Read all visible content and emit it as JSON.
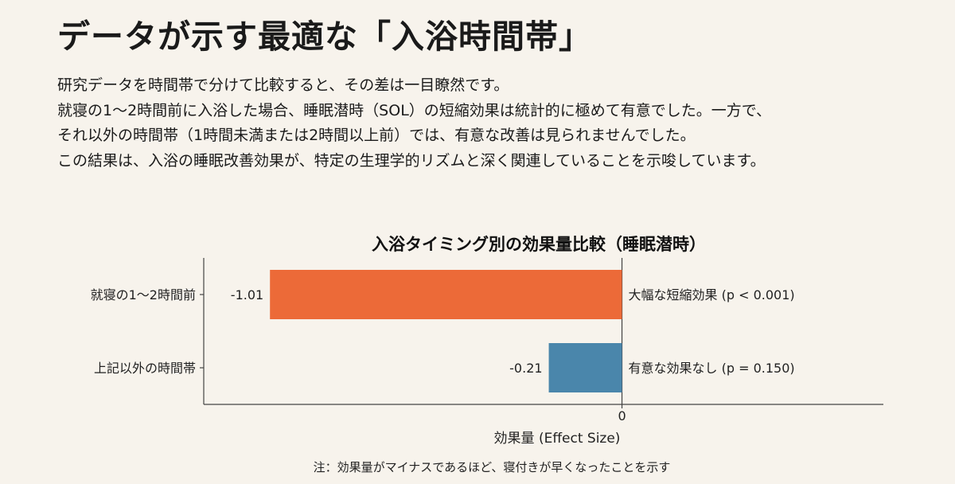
{
  "slide": {
    "title": "データが示す最適な「入浴時間帯」",
    "paragraphs": [
      "研究データを時間帯で分けて比較すると、その差は一目瞭然です。",
      "就寝の1〜2時間前に入浴した場合、睡眠潜時（SOL）の短縮効果は統計的に極めて有意でした。一方で、",
      "それ以外の時間帯（1時間未満または2時間以上前）では、有意な改善は見られませんでした。",
      "この結果は、入浴の睡眠改善効果が、特定の生理学的リズムと深く関連していることを示唆しています。"
    ]
  },
  "chart_data": {
    "type": "bar",
    "orientation": "horizontal",
    "title": "入浴タイミング別の効果量比較（睡眠潜時）",
    "xlabel": "効果量 (Effect Size)",
    "ylabel": "",
    "xlim": [
      -1.2,
      0.75
    ],
    "xticks": [
      "0"
    ],
    "categories": [
      "就寝の1〜2時間前",
      "上記以外の時間帯"
    ],
    "values": [
      -1.01,
      -0.21
    ],
    "value_labels": [
      "-1.01",
      "-0.21"
    ],
    "annotations": [
      "大幅な短縮効果 (p < 0.001)",
      "有意な効果なし (p = 0.150)"
    ],
    "colors": [
      "#ec6a38",
      "#4a86ab"
    ],
    "note": "注：効果量がマイナスであるほど、寝付きが早くなったことを示す",
    "grid": false
  }
}
